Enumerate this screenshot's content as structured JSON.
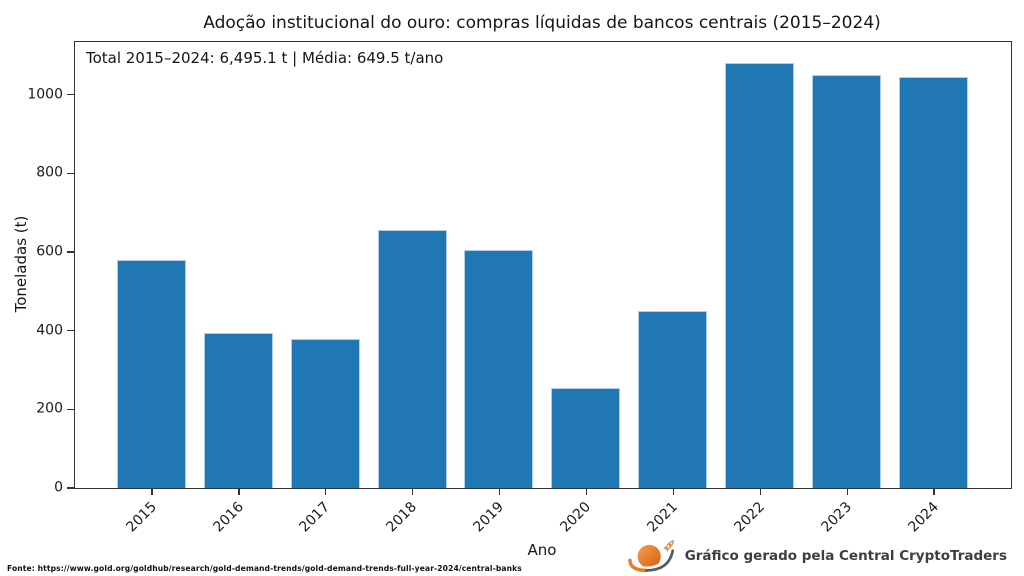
{
  "title": "Adoção institucional do ouro: compras líquidas de bancos centrais (2015–2024)",
  "annotation": "Total 2015–2024: 6,495.1 t | Média: 649.5 t/ano",
  "chart_data": {
    "type": "bar",
    "categories": [
      "2015",
      "2016",
      "2017",
      "2018",
      "2019",
      "2020",
      "2021",
      "2022",
      "2023",
      "2024"
    ],
    "values": [
      579.6,
      394.9,
      378.6,
      656.2,
      605.4,
      254.9,
      450.1,
      1080.0,
      1050.8,
      1044.6
    ],
    "total": "6,495.1 t",
    "mean": "649.5 t/ano",
    "title": "Adoção institucional do ouro: compras líquidas de bancos centrais (2015–2024)",
    "xlabel": "Ano",
    "ylabel": "Toneladas (t)",
    "ylim": [
      0,
      1134
    ],
    "yticks": [
      0,
      200,
      400,
      600,
      800,
      1000
    ],
    "xtick_rotation_deg": 45,
    "grid": false,
    "legend_position": "none",
    "bar_color": "#2176b4",
    "bar_edge_color": "#b0cee5",
    "spine_color": "#333333"
  },
  "footer": {
    "source": "Fonte: https://www.gold.org/goldhub/research/gold-demand-trends/gold-demand-trends-full-year-2024/central-banks",
    "credit": "Gráfico gerado pela Central CryptoTraders",
    "logo": "planet-rocket-logo",
    "logo_orange": "#e87a28",
    "logo_gray": "#58595b"
  }
}
